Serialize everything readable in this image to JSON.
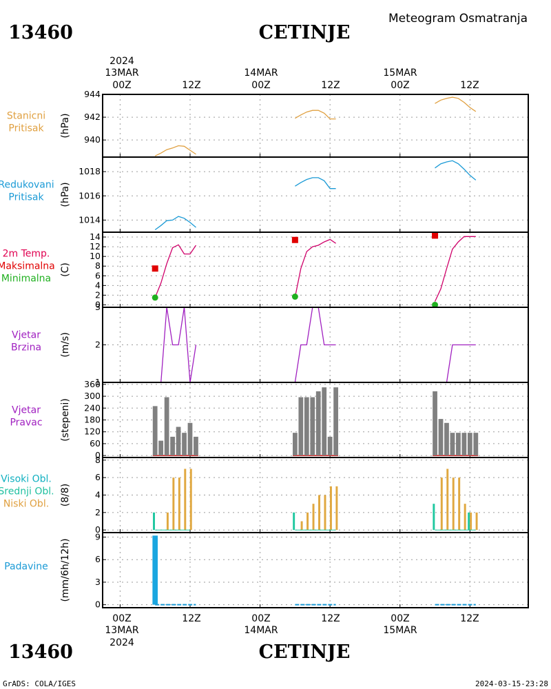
{
  "header": {
    "station_id": "13460",
    "station_name": "CETINJE",
    "title": "Meteogram Osmatranja"
  },
  "footer": {
    "source": "GrADS: COLA/IGES",
    "timestamp": "2024-03-15-23:28"
  },
  "time_axis": {
    "year": "2024",
    "days": [
      "13MAR",
      "14MAR",
      "15MAR"
    ],
    "hour_labels": [
      "00Z",
      "12Z",
      "00Z",
      "12Z",
      "00Z",
      "12Z"
    ],
    "hour_values": [
      0,
      12,
      24,
      36,
      48,
      60
    ],
    "day_label_hours": [
      0,
      24,
      48
    ],
    "xlim": [
      -3,
      70
    ]
  },
  "chart_data": [
    {
      "id": "pressure",
      "type": "line",
      "labels": [
        "Stanicni",
        "Pritisak"
      ],
      "label_color": "#e0a040",
      "unit": "(hPa)",
      "ylim": [
        938.5,
        944
      ],
      "yticks": [
        940,
        942,
        944
      ],
      "series": [
        {
          "color": "#e0a040",
          "segments": [
            {
              "x": [
                6,
                7,
                8,
                9,
                10,
                11,
                12,
                13
              ],
              "y": [
                938.6,
                938.85,
                939.15,
                939.3,
                939.5,
                939.45,
                939.1,
                938.75
              ]
            },
            {
              "x": [
                30,
                31,
                32,
                33,
                34,
                35,
                36,
                37
              ],
              "y": [
                941.9,
                942.2,
                942.45,
                942.6,
                942.6,
                942.35,
                941.85,
                941.85
              ]
            },
            {
              "x": [
                54,
                55,
                56,
                57,
                58,
                59,
                60,
                61
              ],
              "y": [
                943.2,
                943.5,
                943.65,
                943.75,
                943.65,
                943.3,
                942.85,
                942.5
              ]
            }
          ]
        }
      ],
      "markers": []
    },
    {
      "id": "mslp",
      "type": "line",
      "labels": [
        "Redukovani",
        "Pritisak"
      ],
      "label_color": "#1a9ad6",
      "unit": "(hPa)",
      "ylim": [
        1013,
        1019.2
      ],
      "yticks": [
        1014,
        1016,
        1018
      ],
      "series": [
        {
          "color": "#1a9ad6",
          "segments": [
            {
              "x": [
                6,
                7,
                8,
                9,
                10,
                11,
                12,
                13
              ],
              "y": [
                1013.2,
                1013.55,
                1013.95,
                1014.0,
                1014.3,
                1014.15,
                1013.8,
                1013.4
              ]
            },
            {
              "x": [
                30,
                31,
                32,
                33,
                34,
                35,
                36,
                37
              ],
              "y": [
                1016.8,
                1017.1,
                1017.35,
                1017.5,
                1017.5,
                1017.25,
                1016.6,
                1016.6
              ]
            },
            {
              "x": [
                54,
                55,
                56,
                57,
                58,
                59,
                60,
                61
              ],
              "y": [
                1018.3,
                1018.65,
                1018.8,
                1018.9,
                1018.65,
                1018.2,
                1017.7,
                1017.3
              ]
            }
          ]
        }
      ],
      "markers": []
    },
    {
      "id": "temperature",
      "type": "line",
      "labels": [
        "2m Temp.",
        "Maksimalna",
        "Minimalna"
      ],
      "label_colors": [
        "#e00050",
        "#e00000",
        "#20b020"
      ],
      "unit": "(C)",
      "ylim": [
        -0.5,
        15
      ],
      "yticks": [
        0,
        2,
        4,
        6,
        8,
        10,
        12,
        14
      ],
      "series": [
        {
          "color": "#d0006a",
          "segments": [
            {
              "x": [
                6,
                7,
                8,
                9,
                10,
                11,
                12,
                13
              ],
              "y": [
                1.5,
                4.5,
                8.5,
                11.8,
                12.4,
                10.5,
                10.5,
                12.3
              ]
            },
            {
              "x": [
                30,
                31,
                32,
                33,
                34,
                35,
                36,
                37
              ],
              "y": [
                1.6,
                7.5,
                11.0,
                12.0,
                12.3,
                13.0,
                13.5,
                12.7
              ]
            },
            {
              "x": [
                54,
                55,
                56,
                57,
                58,
                59,
                60,
                61
              ],
              "y": [
                0.7,
                3.3,
                7.5,
                11.5,
                13.0,
                14.1,
                14.1,
                14.1
              ]
            }
          ]
        }
      ],
      "markers": [
        {
          "kind": "square",
          "color": "#e00000",
          "x": [
            6,
            30,
            54
          ],
          "y": [
            7.5,
            13.4,
            14.3
          ]
        },
        {
          "kind": "circle",
          "color": "#20b020",
          "x": [
            6,
            30,
            54
          ],
          "y": [
            1.5,
            1.7,
            0.0
          ]
        }
      ]
    },
    {
      "id": "wind_speed",
      "type": "line",
      "labels": [
        "Vjetar",
        "Brzina"
      ],
      "label_color": "#a020c0",
      "unit": "(m/s)",
      "ylim": [
        1,
        3
      ],
      "yticks": [
        1,
        2,
        3
      ],
      "series": [
        {
          "color": "#a020c0",
          "segments": [
            {
              "x": [
                6,
                7,
                8,
                9,
                10,
                11,
                12,
                13
              ],
              "y": [
                1,
                1,
                3,
                2,
                2,
                3,
                1,
                2
              ]
            },
            {
              "x": [
                30,
                31,
                32,
                33,
                34,
                35,
                36,
                37
              ],
              "y": [
                1,
                2,
                2,
                3,
                3,
                2,
                2,
                2
              ]
            },
            {
              "x": [
                54,
                55,
                56,
                57,
                58,
                59,
                60,
                61
              ],
              "y": [
                1,
                1,
                1,
                2,
                2,
                2,
                2,
                2
              ]
            }
          ]
        }
      ],
      "markers": []
    },
    {
      "id": "wind_direction",
      "type": "bar",
      "labels": [
        "Vjetar",
        "Pravac"
      ],
      "label_color": "#a020c0",
      "unit": "(stepeni)",
      "ylim": [
        -10,
        370
      ],
      "yticks": [
        0,
        60,
        120,
        180,
        240,
        300,
        360
      ],
      "bar_width": 0.8,
      "bars": [
        {
          "color": "#808080",
          "offset": 0,
          "x": [
            6,
            7,
            8,
            9,
            10,
            11,
            12,
            13,
            30,
            31,
            32,
            33,
            34,
            35,
            36,
            37,
            54,
            55,
            56,
            57,
            58,
            59,
            60,
            61
          ],
          "values": [
            250,
            75,
            295,
            95,
            145,
            115,
            165,
            95,
            115,
            295,
            295,
            295,
            325,
            345,
            95,
            345,
            325,
            185,
            165,
            115,
            115,
            115,
            115,
            115
          ]
        }
      ],
      "baseline_color": "#e00000"
    },
    {
      "id": "clouds",
      "type": "bar",
      "labels": [
        "Visoki Obl.",
        "Srednji Obl.",
        "Niski Obl."
      ],
      "label_colors": [
        "#10b0c0",
        "#20c0a0",
        "#e0a040"
      ],
      "unit": "(8/8)",
      "ylim": [
        -0.3,
        8.3
      ],
      "yticks": [
        0,
        2,
        4,
        6,
        8
      ],
      "bar_width": 0.35,
      "bars": [
        {
          "name": "Visoki Obl.",
          "color": "#20c8a0",
          "offset": -0.2,
          "x": [
            6,
            30,
            54
          ],
          "values": [
            2,
            2,
            3
          ]
        },
        {
          "name": "Niski Obl.",
          "color": "#e0a840",
          "offset": 0.15,
          "x": [
            8,
            9,
            10,
            11,
            12,
            31,
            32,
            33,
            34,
            35,
            36,
            37,
            55,
            56,
            57,
            58,
            59,
            60,
            61
          ],
          "values": [
            2,
            6,
            6,
            7,
            7,
            1,
            2,
            3,
            4,
            4,
            5,
            5,
            6,
            7,
            6,
            6,
            3,
            2,
            2
          ]
        },
        {
          "name": "Srednji Obl.",
          "color": "#20c8a0",
          "offset": -0.2,
          "x": [
            60
          ],
          "values": [
            2
          ]
        }
      ]
    },
    {
      "id": "precipitation",
      "type": "bar",
      "labels": [
        "Padavine"
      ],
      "label_color": "#1a9ad6",
      "unit": "(mm/6h/12h)",
      "ylim": [
        -0.4,
        9.6
      ],
      "yticks": [
        0,
        3,
        6,
        9
      ],
      "bar_width": 0.9,
      "bars": [
        {
          "color": "#1aa6e0",
          "offset": 0,
          "x": [
            6
          ],
          "values": [
            9.2
          ]
        }
      ],
      "baseline_ranges": [
        [
          6,
          13
        ],
        [
          30,
          37
        ],
        [
          54,
          61
        ]
      ],
      "baseline_color": "#1a9ad6"
    }
  ]
}
